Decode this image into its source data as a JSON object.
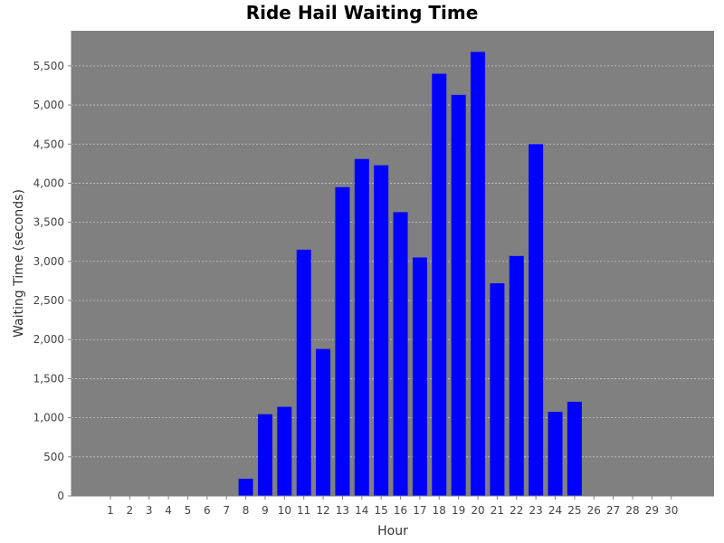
{
  "chart_data": {
    "type": "bar",
    "title": "Ride Hail Waiting Time",
    "xlabel": "Hour",
    "ylabel": "Waiting Time (seconds)",
    "categories": [
      "1",
      "2",
      "3",
      "4",
      "5",
      "6",
      "7",
      "8",
      "9",
      "10",
      "11",
      "12",
      "13",
      "14",
      "15",
      "16",
      "17",
      "18",
      "19",
      "20",
      "21",
      "22",
      "23",
      "24",
      "25",
      "26",
      "27",
      "28",
      "29",
      "30"
    ],
    "values": [
      0,
      0,
      0,
      0,
      0,
      0,
      0,
      220,
      1045,
      1140,
      3150,
      1880,
      3950,
      4310,
      4230,
      3630,
      3050,
      5400,
      5130,
      5680,
      2720,
      3070,
      4500,
      1075,
      1205,
      0,
      0,
      0,
      0,
      0
    ],
    "ylim": [
      0,
      5950
    ],
    "yticks": [
      0,
      500,
      1000,
      1500,
      2000,
      2500,
      3000,
      3500,
      4000,
      4500,
      5000,
      5500
    ],
    "ytick_labels": [
      "0",
      "500",
      "1,000",
      "1,500",
      "2,000",
      "2,500",
      "3,000",
      "3,500",
      "4,000",
      "4,500",
      "5,000",
      "5,500"
    ],
    "grid": true,
    "colors": {
      "plot_background": "#808080",
      "bar": "#0000ff",
      "grid": "#c8c8c8"
    }
  }
}
